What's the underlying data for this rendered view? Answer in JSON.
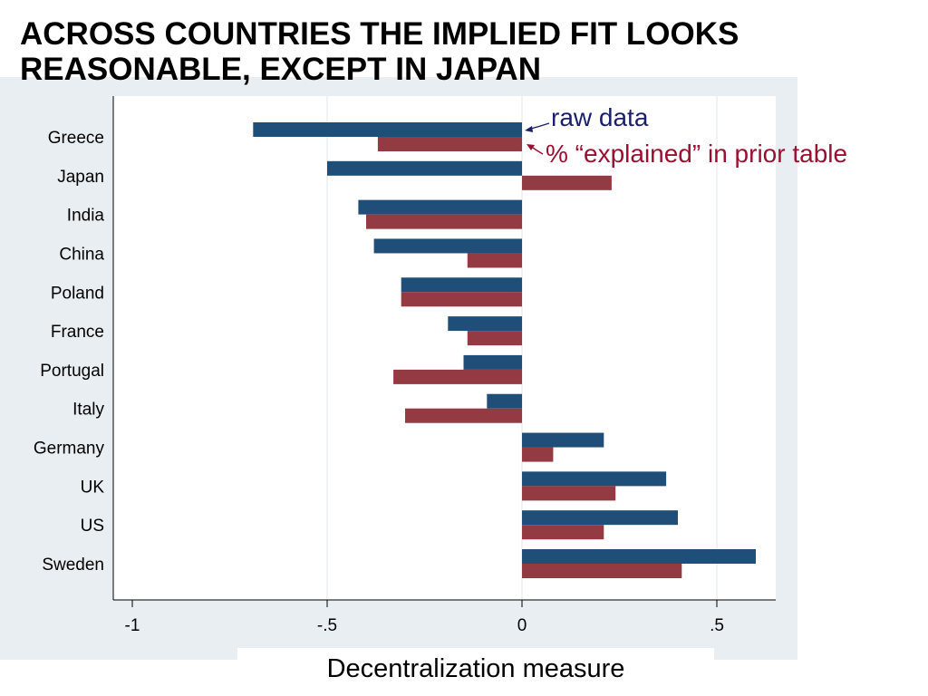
{
  "slide": {
    "title_line1": "ACROSS COUNTRIES THE IMPLIED FIT LOOKS",
    "title_line2": "REASONABLE, EXCEPT IN JAPAN"
  },
  "annotations": {
    "raw": "raw data",
    "explained": "% “explained” in prior table"
  },
  "colors": {
    "raw": "#1f4e79",
    "explained": "#943a42",
    "panel": "#e9eef2"
  },
  "chart_data": {
    "type": "bar",
    "orientation": "horizontal",
    "categories": [
      "Greece",
      "Japan",
      "India",
      "China",
      "Poland",
      "France",
      "Portugal",
      "Italy",
      "Germany",
      "UK",
      "US",
      "Sweden"
    ],
    "series": [
      {
        "name": "raw data",
        "values": [
          -0.69,
          -0.5,
          -0.42,
          -0.38,
          -0.31,
          -0.19,
          -0.15,
          -0.09,
          0.21,
          0.37,
          0.4,
          0.6
        ]
      },
      {
        "name": "% “explained” in prior table",
        "values": [
          -0.37,
          0.23,
          -0.4,
          -0.14,
          -0.31,
          -0.14,
          -0.33,
          -0.3,
          0.08,
          0.24,
          0.21,
          0.41
        ]
      }
    ],
    "xlabel": "Decentralization measure",
    "xlim": [
      -1.05,
      0.65
    ],
    "xticks": [
      -1,
      -0.5,
      0,
      0.5
    ],
    "xtick_labels": [
      "-1",
      "-.5",
      "0",
      ".5"
    ],
    "grid": true
  }
}
